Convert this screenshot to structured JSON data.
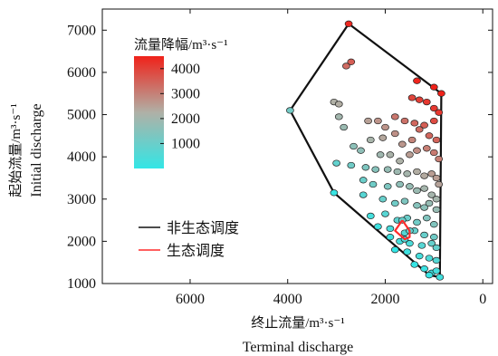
{
  "chart_data": {
    "type": "scatter",
    "x_axis": {
      "label": "终止流量/m³·s⁻¹",
      "label_en": "Terminal discharge",
      "range": [
        7800,
        -200
      ],
      "reversed": true,
      "ticks": [
        6000,
        4000,
        2000,
        0
      ],
      "tick_labels": [
        "6000",
        "4000",
        "2000",
        "0"
      ]
    },
    "y_axis": {
      "label": "起始流量/m³·s⁻¹",
      "label_en": "Initial discharge",
      "range": [
        1000,
        7500
      ],
      "ticks": [
        1000,
        2000,
        3000,
        4000,
        5000,
        6000,
        7000
      ],
      "tick_labels": [
        "1000",
        "2000",
        "3000",
        "4000",
        "5000",
        "6000",
        "7000"
      ]
    },
    "colorbar": {
      "title": "流量降幅/m³·s⁻¹",
      "range": [
        0,
        4500
      ],
      "ticks": [
        1000,
        2000,
        3000,
        4000
      ],
      "tick_labels": [
        "1000",
        "2000",
        "3000",
        "4000"
      ],
      "colors": [
        "#33e6e6",
        "#b0b0a6",
        "#f0221a"
      ]
    },
    "legend": {
      "position": "lower-left",
      "entries": [
        {
          "label": "非生态调度",
          "color": "#111111"
        },
        {
          "label": "生态调度",
          "color": "#ff2b2b"
        }
      ]
    },
    "hull_non_ecological": [
      [
        2750,
        7150
      ],
      [
        850,
        5500
      ],
      [
        880,
        1150
      ],
      [
        1100,
        1200
      ],
      [
        3050,
        3150
      ],
      [
        3950,
        5100
      ],
      [
        2750,
        7150
      ]
    ],
    "hull_ecological": [
      [
        1650,
        2500
      ],
      [
        1500,
        2250
      ],
      [
        1500,
        2100
      ],
      [
        1600,
        2050
      ],
      [
        1800,
        2250
      ],
      [
        1650,
        2500
      ]
    ],
    "points": [
      [
        2750,
        7150
      ],
      [
        2700,
        6250
      ],
      [
        2800,
        6150
      ],
      [
        1350,
        5800
      ],
      [
        1000,
        5650
      ],
      [
        850,
        5500
      ],
      [
        3950,
        5100
      ],
      [
        3050,
        5300
      ],
      [
        2950,
        5250
      ],
      [
        1450,
        5400
      ],
      [
        1300,
        5350
      ],
      [
        1150,
        5300
      ],
      [
        1000,
        5150
      ],
      [
        900,
        5050
      ],
      [
        2950,
        4950
      ],
      [
        2850,
        4700
      ],
      [
        2350,
        4850
      ],
      [
        2150,
        4850
      ],
      [
        2000,
        4700
      ],
      [
        1800,
        4950
      ],
      [
        1600,
        4850
      ],
      [
        1400,
        4800
      ],
      [
        1200,
        4750
      ],
      [
        1000,
        4850
      ],
      [
        2300,
        4400
      ],
      [
        2050,
        4450
      ],
      [
        1800,
        4550
      ],
      [
        1650,
        4300
      ],
      [
        1450,
        4400
      ],
      [
        1300,
        4650
      ],
      [
        1100,
        4500
      ],
      [
        950,
        4400
      ],
      [
        2650,
        4250
      ],
      [
        2500,
        4150
      ],
      [
        2100,
        4050
      ],
      [
        1900,
        4050
      ],
      [
        1700,
        3900
      ],
      [
        1500,
        4050
      ],
      [
        1350,
        4150
      ],
      [
        1150,
        4200
      ],
      [
        1000,
        4100
      ],
      [
        900,
        3950
      ],
      [
        3000,
        3850
      ],
      [
        2700,
        3800
      ],
      [
        2400,
        3750
      ],
      [
        2200,
        3700
      ],
      [
        1950,
        3700
      ],
      [
        1750,
        3650
      ],
      [
        1550,
        3600
      ],
      [
        1350,
        3650
      ],
      [
        1200,
        3550
      ],
      [
        1050,
        3600
      ],
      [
        950,
        3500
      ],
      [
        900,
        3350
      ],
      [
        3050,
        3150
      ],
      [
        2450,
        3450
      ],
      [
        2250,
        3350
      ],
      [
        1950,
        3300
      ],
      [
        1700,
        3350
      ],
      [
        1500,
        3300
      ],
      [
        1350,
        3200
      ],
      [
        1200,
        3250
      ],
      [
        1050,
        3100
      ],
      [
        950,
        3000
      ],
      [
        2450,
        3100
      ],
      [
        2050,
        3000
      ],
      [
        1800,
        2900
      ],
      [
        1600,
        2950
      ],
      [
        1350,
        2850
      ],
      [
        1200,
        2800
      ],
      [
        1100,
        2900
      ],
      [
        950,
        2750
      ],
      [
        2300,
        2600
      ],
      [
        2000,
        2650
      ],
      [
        1750,
        2500
      ],
      [
        1550,
        2550
      ],
      [
        1350,
        2450
      ],
      [
        1150,
        2550
      ],
      [
        1000,
        2400
      ],
      [
        2150,
        2350
      ],
      [
        1900,
        2300
      ],
      [
        1600,
        2200
      ],
      [
        1400,
        2250
      ],
      [
        1200,
        2150
      ],
      [
        1000,
        2100
      ],
      [
        1900,
        2100
      ],
      [
        1700,
        2000
      ],
      [
        1500,
        1950
      ],
      [
        1250,
        1900
      ],
      [
        1050,
        1950
      ],
      [
        950,
        1850
      ],
      [
        1800,
        1800
      ],
      [
        1550,
        1750
      ],
      [
        1300,
        1650
      ],
      [
        1100,
        1600
      ],
      [
        950,
        1550
      ],
      [
        1400,
        1450
      ],
      [
        1200,
        1350
      ],
      [
        1050,
        1250
      ],
      [
        950,
        1300
      ],
      [
        1100,
        1200
      ],
      [
        880,
        1150
      ],
      [
        1650,
        2500
      ],
      [
        1500,
        2250
      ],
      [
        1600,
        2050
      ]
    ]
  }
}
